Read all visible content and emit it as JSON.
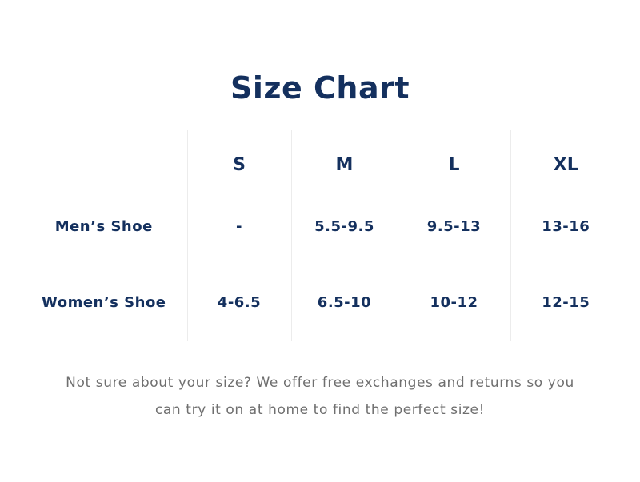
{
  "title": "Size Chart",
  "table": {
    "headers": [
      "",
      "S",
      "M",
      "L",
      "XL"
    ],
    "rows": [
      {
        "label": "Men’s Shoe",
        "values": [
          "-",
          "5.5-9.5",
          "9.5-13",
          "13-16"
        ]
      },
      {
        "label": "Women’s Shoe",
        "values": [
          "4-6.5",
          "6.5-10",
          "10-12",
          "12-15"
        ]
      }
    ]
  },
  "note": {
    "line1": "Not sure about your size? We offer free exchanges and returns so you",
    "line2": "can try it on at home to find the perfect size!"
  }
}
